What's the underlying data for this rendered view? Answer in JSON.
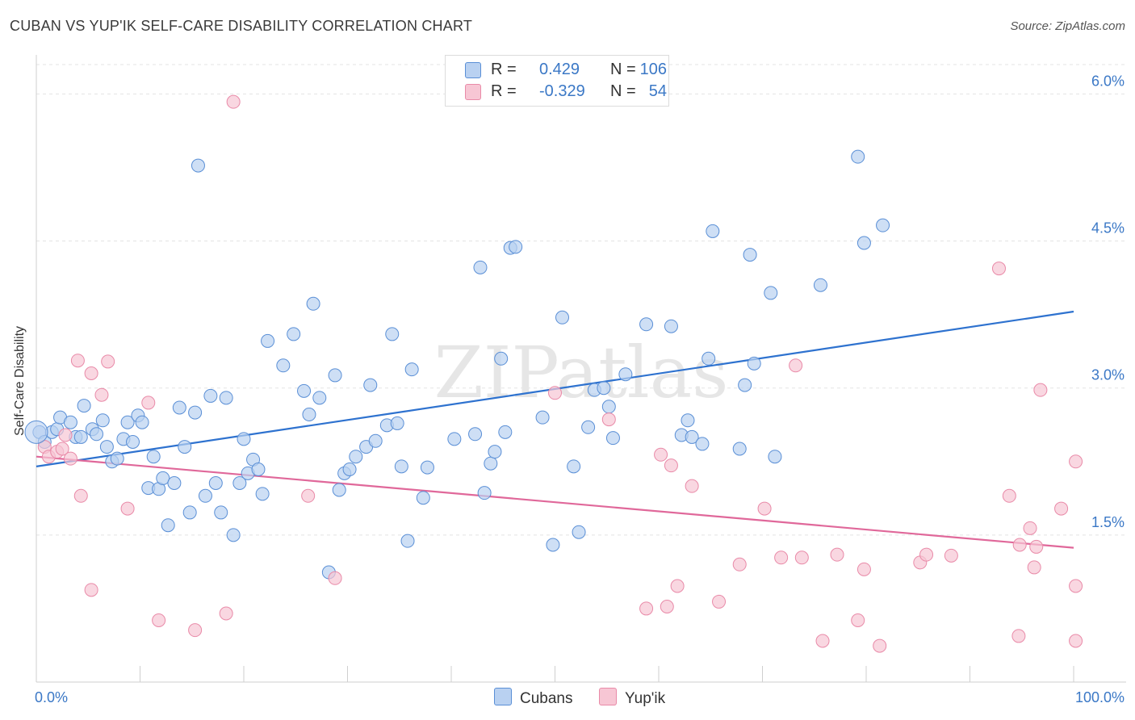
{
  "title": "CUBAN VS YUP'IK SELF-CARE DISABILITY CORRELATION CHART",
  "source": "Source: ZipAtlas.com",
  "watermark": "ZIPatlas",
  "colors": {
    "blue_fill": "#b9d1f1",
    "blue_stroke": "#5a8fd6",
    "blue_line": "#2e72cf",
    "pink_fill": "#f7c6d4",
    "pink_stroke": "#e98aa8",
    "pink_line": "#e0689a",
    "tick_text": "#3b78c6",
    "grid": "#e3e3e3"
  },
  "legend": {
    "rows": [
      {
        "r_label": "R =",
        "r_value": "0.429",
        "n_label": "N =",
        "n_value": "106",
        "color": "#b9d1f1",
        "border": "#5a8fd6"
      },
      {
        "r_label": "R =",
        "r_value": "-0.329",
        "n_label": "N =",
        "n_value": "54",
        "color": "#f7c6d4",
        "border": "#e98aa8"
      }
    ]
  },
  "bottom_legend": {
    "blue": "Cubans",
    "pink": "Yup'ik"
  },
  "chart_data": {
    "type": "scatter",
    "xlabel": "",
    "ylabel": "Self-Care Disability",
    "xlim": [
      0,
      100
    ],
    "ylim": [
      0,
      6.3
    ],
    "x_tick_labels": {
      "min": "0.0%",
      "max": "100.0%"
    },
    "y_ticks": [
      1.5,
      3.0,
      4.5,
      6.0
    ],
    "y_tick_labels": [
      "1.5%",
      "3.0%",
      "4.5%",
      "6.0%"
    ],
    "grid": true,
    "series": [
      {
        "name": "Cubans",
        "trend": {
          "x": [
            0,
            100
          ],
          "y": [
            2.2,
            3.78
          ]
        },
        "points": [
          [
            0.3,
            2.55
          ],
          [
            0.8,
            2.45
          ],
          [
            1.5,
            2.55
          ],
          [
            2.0,
            2.58
          ],
          [
            2.3,
            2.7
          ],
          [
            3.3,
            2.65
          ],
          [
            3.8,
            2.5
          ],
          [
            4.3,
            2.5
          ],
          [
            4.6,
            2.82
          ],
          [
            5.4,
            2.58
          ],
          [
            5.8,
            2.53
          ],
          [
            6.4,
            2.67
          ],
          [
            6.8,
            2.4
          ],
          [
            7.3,
            2.25
          ],
          [
            7.8,
            2.28
          ],
          [
            8.4,
            2.48
          ],
          [
            8.8,
            2.65
          ],
          [
            9.3,
            2.45
          ],
          [
            9.8,
            2.72
          ],
          [
            10.2,
            2.65
          ],
          [
            10.8,
            1.98
          ],
          [
            11.3,
            2.3
          ],
          [
            11.8,
            1.97
          ],
          [
            12.2,
            2.08
          ],
          [
            12.7,
            1.6
          ],
          [
            13.3,
            2.03
          ],
          [
            13.8,
            2.8
          ],
          [
            14.3,
            2.4
          ],
          [
            14.8,
            1.73
          ],
          [
            15.3,
            2.75
          ],
          [
            15.6,
            5.27
          ],
          [
            16.3,
            1.9
          ],
          [
            16.8,
            2.92
          ],
          [
            17.3,
            2.03
          ],
          [
            17.8,
            1.73
          ],
          [
            18.3,
            2.9
          ],
          [
            19.0,
            1.5
          ],
          [
            19.6,
            2.03
          ],
          [
            20.0,
            2.48
          ],
          [
            20.4,
            2.13
          ],
          [
            20.9,
            2.27
          ],
          [
            21.4,
            2.17
          ],
          [
            21.8,
            1.92
          ],
          [
            22.3,
            3.48
          ],
          [
            23.8,
            3.23
          ],
          [
            24.8,
            3.55
          ],
          [
            25.8,
            2.97
          ],
          [
            26.3,
            2.73
          ],
          [
            26.7,
            3.86
          ],
          [
            27.3,
            2.9
          ],
          [
            28.2,
            1.12
          ],
          [
            28.8,
            3.13
          ],
          [
            29.2,
            1.96
          ],
          [
            29.7,
            2.13
          ],
          [
            30.2,
            2.17
          ],
          [
            30.8,
            2.3
          ],
          [
            31.8,
            2.4
          ],
          [
            32.2,
            3.03
          ],
          [
            32.7,
            2.46
          ],
          [
            33.8,
            2.62
          ],
          [
            34.3,
            3.55
          ],
          [
            34.8,
            2.64
          ],
          [
            35.2,
            2.2
          ],
          [
            35.8,
            1.44
          ],
          [
            36.2,
            3.19
          ],
          [
            37.3,
            1.88
          ],
          [
            37.7,
            2.19
          ],
          [
            40.3,
            2.48
          ],
          [
            42.3,
            2.53
          ],
          [
            42.8,
            4.23
          ],
          [
            43.2,
            1.93
          ],
          [
            43.8,
            2.23
          ],
          [
            44.2,
            2.35
          ],
          [
            44.8,
            3.3
          ],
          [
            45.2,
            2.55
          ],
          [
            45.7,
            4.43
          ],
          [
            46.2,
            4.44
          ],
          [
            48.8,
            2.7
          ],
          [
            49.8,
            1.4
          ],
          [
            50.7,
            3.72
          ],
          [
            51.8,
            2.2
          ],
          [
            52.3,
            1.53
          ],
          [
            53.2,
            2.6
          ],
          [
            53.8,
            2.98
          ],
          [
            54.7,
            3.0
          ],
          [
            55.2,
            2.81
          ],
          [
            55.6,
            2.49
          ],
          [
            56.8,
            3.14
          ],
          [
            58.8,
            3.65
          ],
          [
            61.2,
            3.63
          ],
          [
            62.2,
            2.52
          ],
          [
            62.8,
            2.67
          ],
          [
            63.2,
            2.5
          ],
          [
            64.2,
            2.43
          ],
          [
            64.8,
            3.3
          ],
          [
            65.2,
            4.6
          ],
          [
            67.8,
            2.38
          ],
          [
            68.3,
            3.03
          ],
          [
            68.8,
            4.36
          ],
          [
            69.2,
            3.25
          ],
          [
            70.8,
            3.97
          ],
          [
            71.2,
            2.3
          ],
          [
            75.6,
            4.05
          ],
          [
            79.2,
            5.36
          ],
          [
            79.8,
            4.48
          ],
          [
            81.6,
            4.66
          ]
        ]
      },
      {
        "name": "Yup'ik",
        "trend": {
          "x": [
            0,
            100
          ],
          "y": [
            2.3,
            1.37
          ]
        },
        "points": [
          [
            0.8,
            2.4
          ],
          [
            1.2,
            2.3
          ],
          [
            2.0,
            2.35
          ],
          [
            2.5,
            2.38
          ],
          [
            2.8,
            2.52
          ],
          [
            3.3,
            2.28
          ],
          [
            4.0,
            3.28
          ],
          [
            4.3,
            1.9
          ],
          [
            5.3,
            0.94
          ],
          [
            5.3,
            3.15
          ],
          [
            6.3,
            2.93
          ],
          [
            6.9,
            3.27
          ],
          [
            8.8,
            1.77
          ],
          [
            10.8,
            2.85
          ],
          [
            11.8,
            0.63
          ],
          [
            15.3,
            0.53
          ],
          [
            18.3,
            0.7
          ],
          [
            19.0,
            5.92
          ],
          [
            26.2,
            1.9
          ],
          [
            28.8,
            1.06
          ],
          [
            50.0,
            2.95
          ],
          [
            55.2,
            2.68
          ],
          [
            58.8,
            0.75
          ],
          [
            60.2,
            2.32
          ],
          [
            60.8,
            0.77
          ],
          [
            61.2,
            2.21
          ],
          [
            61.8,
            0.98
          ],
          [
            63.2,
            2.0
          ],
          [
            65.8,
            0.82
          ],
          [
            67.8,
            1.2
          ],
          [
            70.2,
            1.77
          ],
          [
            71.8,
            1.27
          ],
          [
            73.2,
            3.23
          ],
          [
            73.8,
            1.27
          ],
          [
            75.8,
            0.42
          ],
          [
            77.2,
            1.3
          ],
          [
            79.2,
            0.63
          ],
          [
            79.8,
            1.15
          ],
          [
            81.3,
            0.37
          ],
          [
            85.2,
            1.22
          ],
          [
            85.8,
            1.3
          ],
          [
            88.2,
            1.29
          ],
          [
            92.8,
            4.22
          ],
          [
            93.8,
            1.9
          ],
          [
            94.7,
            0.47
          ],
          [
            94.8,
            1.4
          ],
          [
            95.8,
            1.57
          ],
          [
            96.2,
            1.17
          ],
          [
            96.4,
            1.38
          ],
          [
            96.8,
            2.98
          ],
          [
            98.8,
            1.77
          ],
          [
            100.2,
            0.98
          ],
          [
            100.2,
            2.25
          ],
          [
            100.2,
            0.42
          ]
        ]
      }
    ]
  }
}
